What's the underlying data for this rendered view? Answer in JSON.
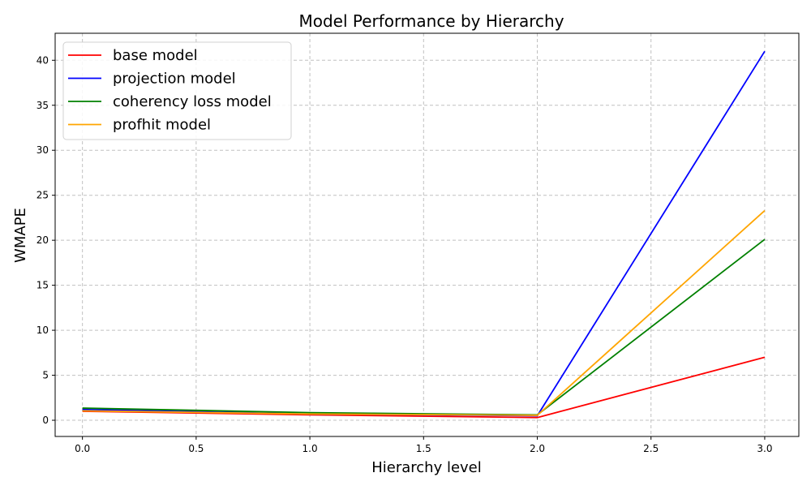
{
  "chart_data": {
    "type": "line",
    "title": "Model Performance by Hierarchy",
    "xlabel": "Hierarchy level",
    "ylabel": "WMAPE",
    "x": [
      0,
      1,
      2,
      3
    ],
    "xlim": [
      -0.12,
      3.15
    ],
    "ylim": [
      -1.8,
      43
    ],
    "xticks": [
      "0.0",
      "0.5",
      "1.0",
      "1.5",
      "2.0",
      "2.5",
      "3.0"
    ],
    "yticks": [
      "0",
      "5",
      "10",
      "15",
      "20",
      "25",
      "30",
      "35",
      "40"
    ],
    "grid": true,
    "legend_position": "top-left",
    "series": [
      {
        "name": "base model",
        "color": "#ff0000",
        "values": [
          1.0,
          0.6,
          0.3,
          7.0
        ]
      },
      {
        "name": "projection model",
        "color": "#0000ff",
        "values": [
          1.2,
          0.7,
          0.5,
          41.0
        ]
      },
      {
        "name": "coherency loss model",
        "color": "#008000",
        "values": [
          1.35,
          0.85,
          0.6,
          20.1
        ]
      },
      {
        "name": "profhit model",
        "color": "#ffa500",
        "values": [
          1.05,
          0.7,
          0.55,
          23.3
        ]
      }
    ]
  }
}
